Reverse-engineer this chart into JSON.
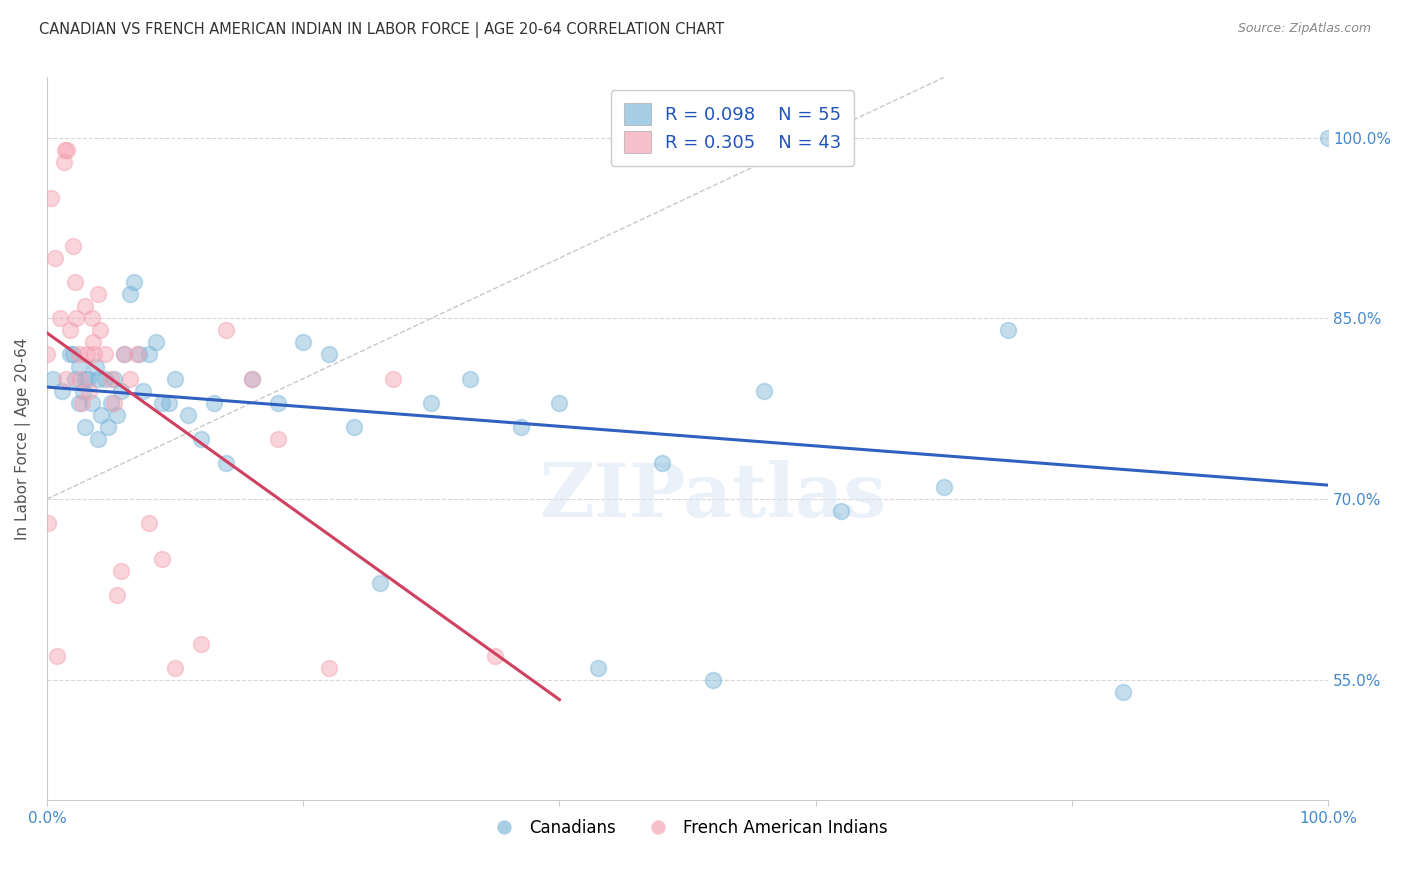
{
  "title": "CANADIAN VS FRENCH AMERICAN INDIAN IN LABOR FORCE | AGE 20-64 CORRELATION CHART",
  "source": "Source: ZipAtlas.com",
  "ylabel": "In Labor Force | Age 20-64",
  "xlim": [
    0,
    1
  ],
  "ylim": [
    0.45,
    1.05
  ],
  "yticks": [
    0.55,
    0.7,
    0.85,
    1.0
  ],
  "ytick_labels": [
    "55.0%",
    "70.0%",
    "85.0%",
    "100.0%"
  ],
  "R_blue": 0.098,
  "N_blue": 55,
  "R_pink": 0.305,
  "N_pink": 43,
  "blue_color": "#7ab4d8",
  "pink_color": "#f4a0b0",
  "blue_line_color": "#3060c0",
  "pink_line_color": "#d04060",
  "diag_color": "#c0c0c0",
  "tick_color": "#4488cc",
  "legend_r_color": "#2255bb",
  "watermark": "ZIPatlas",
  "blue_x": [
    0.005,
    0.012,
    0.018,
    0.02,
    0.022,
    0.025,
    0.025,
    0.028,
    0.03,
    0.03,
    0.032,
    0.035,
    0.038,
    0.04,
    0.04,
    0.042,
    0.045,
    0.048,
    0.05,
    0.052,
    0.055,
    0.058,
    0.06,
    0.065,
    0.068,
    0.072,
    0.075,
    0.08,
    0.085,
    0.09,
    0.095,
    0.1,
    0.11,
    0.12,
    0.13,
    0.14,
    0.16,
    0.18,
    0.2,
    0.22,
    0.24,
    0.26,
    0.3,
    0.33,
    0.37,
    0.4,
    0.43,
    0.48,
    0.52,
    0.56,
    0.62,
    0.7,
    0.75,
    0.84,
    1.0
  ],
  "blue_y": [
    0.8,
    0.79,
    0.82,
    0.82,
    0.8,
    0.81,
    0.78,
    0.79,
    0.8,
    0.76,
    0.8,
    0.78,
    0.81,
    0.8,
    0.75,
    0.77,
    0.8,
    0.76,
    0.78,
    0.8,
    0.77,
    0.79,
    0.82,
    0.87,
    0.88,
    0.82,
    0.79,
    0.82,
    0.83,
    0.78,
    0.78,
    0.8,
    0.77,
    0.75,
    0.78,
    0.73,
    0.8,
    0.78,
    0.83,
    0.82,
    0.76,
    0.63,
    0.78,
    0.8,
    0.76,
    0.78,
    0.56,
    0.73,
    0.55,
    0.79,
    0.69,
    0.71,
    0.84,
    0.54,
    1.0
  ],
  "pink_x": [
    0.0,
    0.001,
    0.003,
    0.006,
    0.008,
    0.01,
    0.013,
    0.014,
    0.015,
    0.016,
    0.018,
    0.02,
    0.022,
    0.023,
    0.025,
    0.026,
    0.027,
    0.03,
    0.031,
    0.033,
    0.035,
    0.036,
    0.037,
    0.04,
    0.041,
    0.045,
    0.05,
    0.052,
    0.055,
    0.058,
    0.06,
    0.065,
    0.07,
    0.08,
    0.09,
    0.1,
    0.12,
    0.14,
    0.16,
    0.18,
    0.22,
    0.27,
    0.35
  ],
  "pink_y": [
    0.82,
    0.68,
    0.95,
    0.9,
    0.57,
    0.85,
    0.98,
    0.99,
    0.8,
    0.99,
    0.84,
    0.91,
    0.88,
    0.85,
    0.82,
    0.8,
    0.78,
    0.86,
    0.82,
    0.79,
    0.85,
    0.83,
    0.82,
    0.87,
    0.84,
    0.82,
    0.8,
    0.78,
    0.62,
    0.64,
    0.82,
    0.8,
    0.82,
    0.68,
    0.65,
    0.56,
    0.58,
    0.84,
    0.8,
    0.75,
    0.56,
    0.8,
    0.57
  ],
  "grid_color": "#d8d8d8",
  "background_color": "#ffffff"
}
